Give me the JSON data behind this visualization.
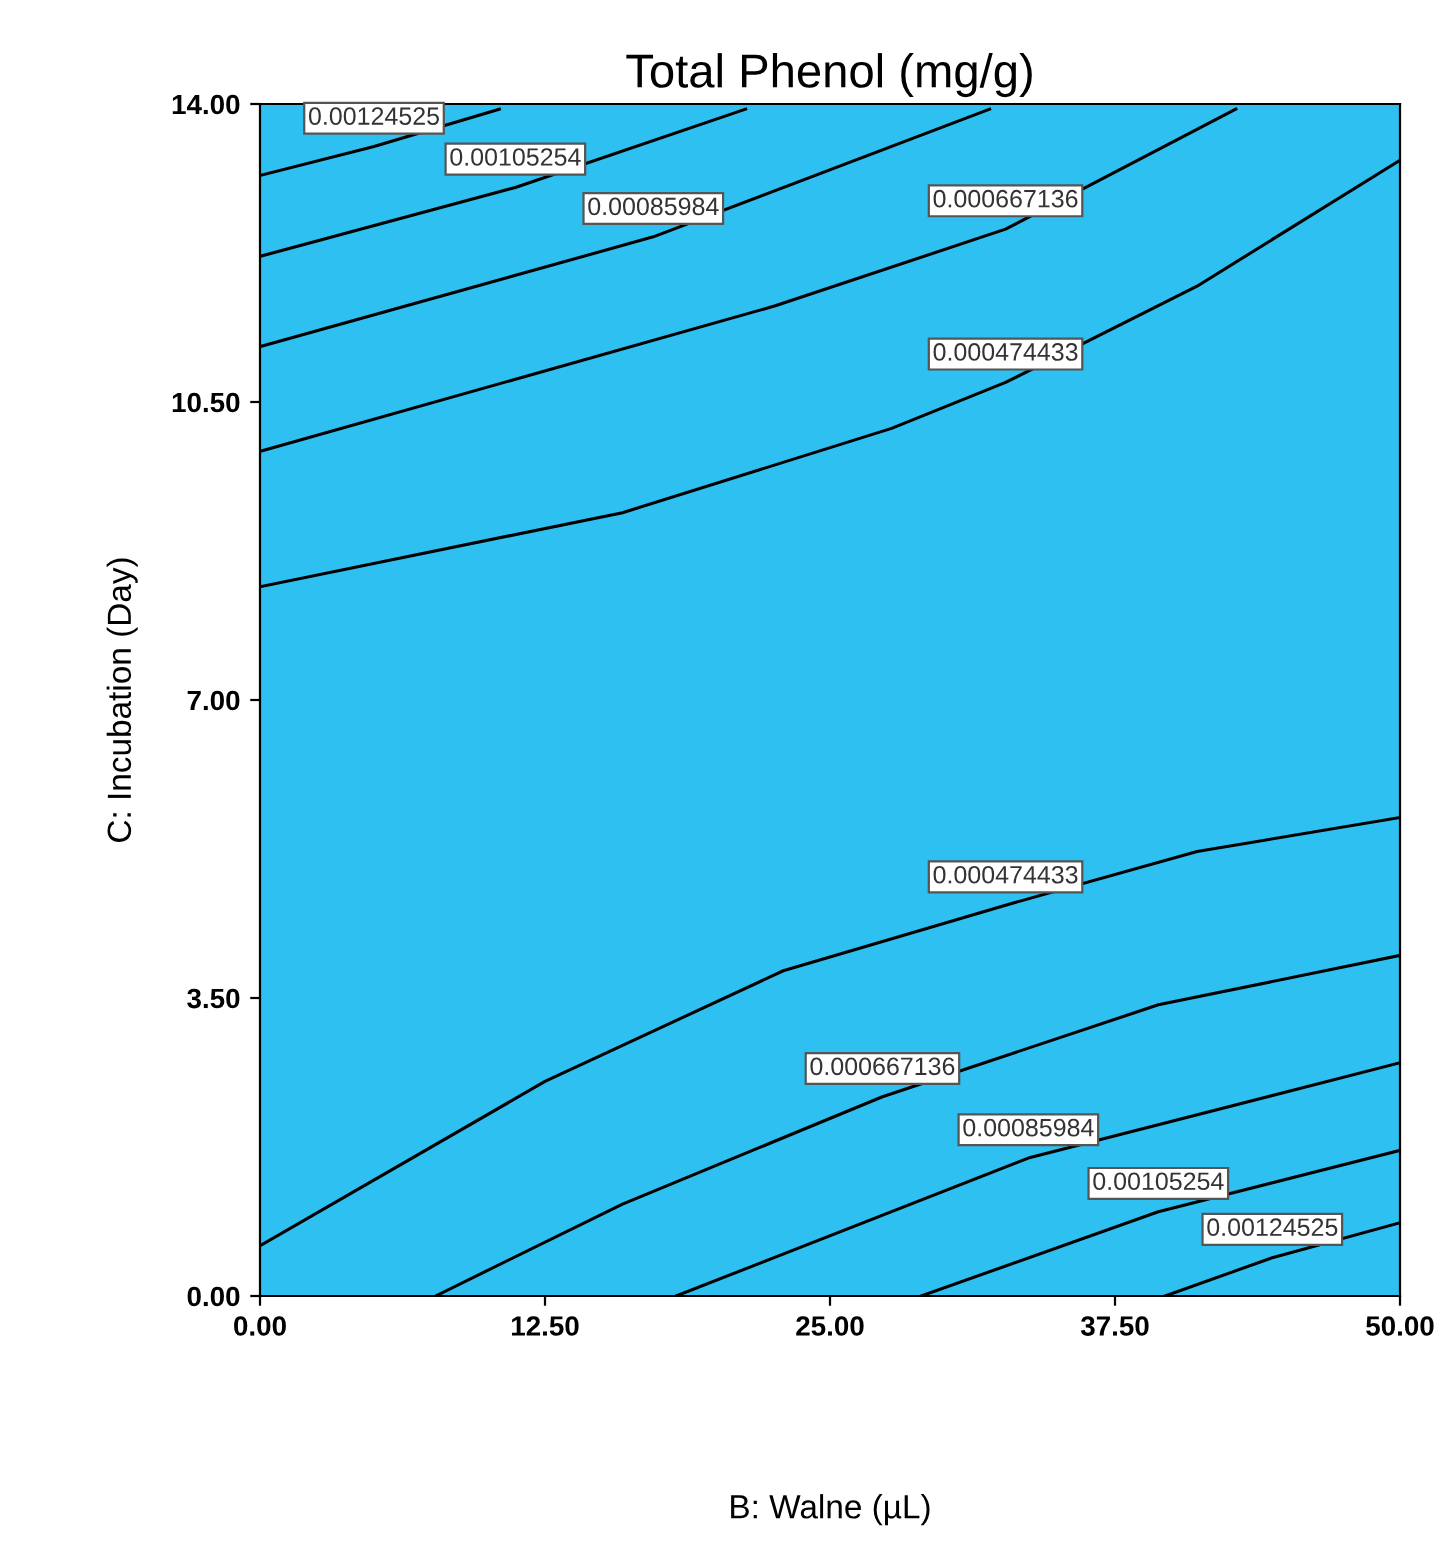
{
  "chart_data": {
    "type": "line",
    "title": "Total Phenol (mg/g)",
    "xlabel": "B: Walne (µL)",
    "ylabel": "C: Incubation (Day)",
    "xlim": [
      0,
      50
    ],
    "ylim": [
      0,
      14
    ],
    "xticks": [
      {
        "value": 0,
        "label": "0.00"
      },
      {
        "value": 12.5,
        "label": "12.50"
      },
      {
        "value": 25,
        "label": "25.00"
      },
      {
        "value": 37.5,
        "label": "37.50"
      },
      {
        "value": 50,
        "label": "50.00"
      }
    ],
    "yticks": [
      {
        "value": 0,
        "label": "0.00"
      },
      {
        "value": 3.5,
        "label": "3.50"
      },
      {
        "value": 7,
        "label": "7.00"
      },
      {
        "value": 10.5,
        "label": "10.50"
      },
      {
        "value": 14,
        "label": "14.00"
      }
    ],
    "grid": false,
    "legend": false,
    "marker": "none",
    "line_style": "solid",
    "series": [
      {
        "name": "0.00124525",
        "color": "#000000",
        "x": [
          0,
          5,
          10.5
        ],
        "values": [
          13.16,
          13.5,
          13.94
        ]
      },
      {
        "name": "0.00105254",
        "color": "#000000",
        "x": [
          0,
          11.2,
          21.3
        ],
        "values": [
          12.21,
          13.02,
          13.94
        ]
      },
      {
        "name": "0.00085984",
        "color": "#000000",
        "x": [
          0,
          17.25,
          32.0
        ],
        "values": [
          11.15,
          12.44,
          13.94
        ]
      },
      {
        "name": "0.000667136",
        "color": "#000000",
        "x": [
          0,
          22.6,
          32.7,
          42.8
        ],
        "values": [
          9.92,
          11.63,
          12.53,
          13.94
        ]
      },
      {
        "name": "0.000474433",
        "color": "#000000",
        "x": [
          0,
          15.9,
          27.7,
          32.7,
          41.1,
          50
        ],
        "values": [
          8.33,
          9.2,
          10.19,
          10.73,
          11.86,
          13.34
        ]
      },
      {
        "name": "0.000474433",
        "color": "#000000",
        "x": [
          0,
          12.5,
          22.95,
          32.7,
          41.1,
          50
        ],
        "values": [
          0.59,
          2.52,
          3.82,
          4.59,
          5.22,
          5.62
        ]
      },
      {
        "name": "0.000667136",
        "color": "#000000",
        "x": [
          7.7,
          15.9,
          27.3,
          39.4,
          50
        ],
        "values": [
          0,
          1.08,
          2.34,
          3.42,
          4.0
        ]
      },
      {
        "name": "0.00085984",
        "color": "#000000",
        "x": [
          18.25,
          33.7,
          50
        ],
        "values": [
          0,
          1.62,
          2.74
        ]
      },
      {
        "name": "0.00105254",
        "color": "#000000",
        "x": [
          29.0,
          39.4,
          50
        ],
        "values": [
          0,
          0.99,
          1.71
        ]
      },
      {
        "name": "0.00124525",
        "color": "#000000",
        "x": [
          39.7,
          44.4,
          50
        ],
        "values": [
          0,
          0.45,
          0.86
        ]
      }
    ]
  }
}
